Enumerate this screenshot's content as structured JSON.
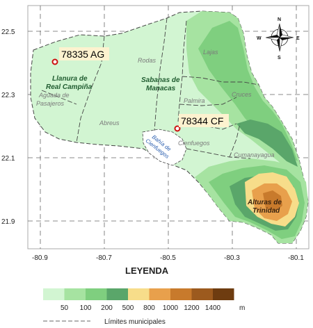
{
  "map": {
    "y_ticks": [
      "22.5",
      "22.3",
      "22.1",
      "21.9"
    ],
    "x_ticks": [
      "-80.9",
      "-80.7",
      "-80.5",
      "-80.3",
      "-80.1"
    ],
    "compass": {
      "n": "N",
      "s": "S",
      "e": "E",
      "w": "W"
    },
    "stations": [
      {
        "label": "78335 AG"
      },
      {
        "label": "78344 CF"
      }
    ],
    "municipalities": {
      "rodas": "Rodas",
      "lajas": "Lajas",
      "palmira": "Palmira",
      "cruces": "Cruces",
      "aguada": [
        "Aguada de",
        "Pasajeros"
      ],
      "abreus": "Abreus",
      "cienfuegos": "Cienfuegos",
      "cumanayagua": "Cumanayagua"
    },
    "regions": {
      "llanura": [
        "Llanura de",
        "Real Campiña"
      ],
      "sabanas": [
        "Sabanas de",
        "Manacas"
      ],
      "alturas": [
        "Alturas de",
        "Trinidad"
      ]
    },
    "bay": [
      "Bahía de",
      "Cienfuegos"
    ]
  },
  "legend": {
    "title": "LEYENDA",
    "classes": [
      "50",
      "100",
      "200",
      "500",
      "800",
      "1000",
      "1200",
      "1400"
    ],
    "unit": "m",
    "colors": [
      "#d2f5d2",
      "#a6e3a1",
      "#7fcf7f",
      "#5aa66a",
      "#f7dd8a",
      "#e8a04c",
      "#c87a2c",
      "#9c5a1e",
      "#6e3c10"
    ],
    "line_label": "Límites municipales"
  }
}
